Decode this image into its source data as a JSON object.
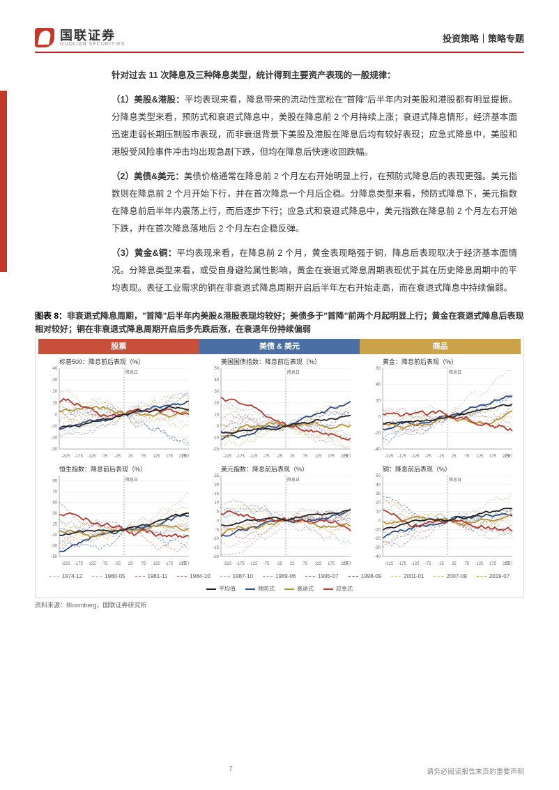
{
  "header": {
    "logo_cn": "国联证券",
    "logo_en": "GUOLIAN SECURITIES",
    "category": "投资策略｜策略专题"
  },
  "text": {
    "lead": "针对过去 11 次降息及三种降息类型，统计得到主要资产表现的一般规律：",
    "p1_label": "（1）美股&港股：",
    "p1_body": "平均表现来看，降息带来的流动性宽松在\"首降\"后半年内对美股和港股都有明显提振。分降息类型来看，预防式和衰退式降息中，美股在降息前 2 个月持续上涨；衰退式降息情形，经济基本面迅速走弱长期压制股市表现，而非衰退背景下美股及港股在降息后均有较好表现；应急式降息中，美股和港股受风险事件冲击均出现急剧下跌，但均在降息后快速收回跌幅。",
    "p2_label": "（2）美债&美元：",
    "p2_body": "美债价格通常在降息前 2 个月左右开始明显上行，在预防式降息后的表现更强。美元指数则在降息前 2 个月开始下行，并在首次降息一个月后企稳。分降息类型来看，预防式降息下，美元指数在降息前后半年内震荡上行，而后逐步下行；应急式和衰退式降息中，美元指数在降息前 2 个月左右开始下跌，并在首次降息落地后 2 个月左右企稳反弹。",
    "p3_label": "（3）黄金&铜：",
    "p3_body": "平均表现来看，在降息前 2 个月，黄金表现略强于铜，降息后表现取决于经济基本面情况。分降息类型来看，或受自身避险属性影响，黄金在衰退式降息周期表现优于其在历史降息周期中的平均表现。表征工业需求的铜在非衰退式降息周期开启后半年左右开始走高，而在衰退式降息中持续偏弱。"
  },
  "figure": {
    "label": "图表 8：",
    "caption": "非衰退式降息周期，\"首降\"后半年内美股&港股表现均较好；美债多于\"首降\"前两个月起明显上行；黄金在衰退式降息后表现相对较好；铜在非衰退式降息周期开启后多先跌后涨，在衰退年份持续偏弱",
    "tabs": {
      "stock": "股票",
      "bond": "美债 & 美元",
      "comm": "商品"
    },
    "charts": [
      {
        "title": "标普500：降息前后表现（%）",
        "marker": "降息日",
        "yrange": [
          -30,
          40
        ],
        "ytick": 10
      },
      {
        "title": "美国国债指数：降息前后表现（%）",
        "marker": "降息日",
        "yrange": [
          -20,
          50
        ],
        "ytick": 10
      },
      {
        "title": "黄金：降息前后表现（%）",
        "marker": "降息日",
        "yrange": [
          -40,
          60
        ],
        "ytick": 20
      },
      {
        "title": "恒生指数：降息前后表现（%）",
        "marker": "降息日",
        "yrange": [
          -50,
          100
        ],
        "ytick": 20
      },
      {
        "title": "美元指数：降息前后表现（%）",
        "marker": "降息日",
        "yrange": [
          -20,
          25
        ],
        "ytick": 5
      },
      {
        "title": "铜：降息前后表现（%）",
        "marker": "降息日",
        "yrange": [
          -40,
          50
        ],
        "ytick": 10
      }
    ],
    "x_ticks": [
      -225,
      -175,
      -125,
      -75,
      -25,
      25,
      75,
      125,
      175,
      225
    ],
    "x_unit": "（天）",
    "series_colors": {
      "1974-12": "#d9a9a0",
      "1980-05": "#cc8f82",
      "1981-11": "#bf7564",
      "1984-10": "#b25b47",
      "1987-10": "#8aa0c6",
      "1989-06": "#6c88b8",
      "1995-07": "#4e70aa",
      "1998-09": "#30589c",
      "2001-01": "#d6c289",
      "2007-09": "#c7ab5f",
      "2019-07": "#b89435",
      "mean": "#222222",
      "preventive": "#2b4a7e",
      "recession": "#b8923b",
      "emergency": "#b23a2f"
    },
    "legend_cycles": [
      "1974-12",
      "1980-05",
      "1981-11",
      "1984-10",
      "1987-10",
      "1989-06",
      "1995-07",
      "1998-09",
      "2001-01",
      "2007-09",
      "2019-07"
    ],
    "legend_types": [
      {
        "key": "mean",
        "label": "平均值"
      },
      {
        "key": "preventive",
        "label": "预防式"
      },
      {
        "key": "recession",
        "label": "衰退式"
      },
      {
        "key": "emergency",
        "label": "应急式"
      }
    ],
    "source": "资料来源：Bloomberg，国联证券研究所"
  },
  "footer": {
    "page": "7",
    "disclaimer": "请务必阅读报告末页的重要声明"
  },
  "style": {
    "line_width_thin": 0.8,
    "line_width_bold": 1.8,
    "grid_color": "#e6e6e6",
    "axis_color": "#999",
    "plot_bg": "#ffffff"
  }
}
